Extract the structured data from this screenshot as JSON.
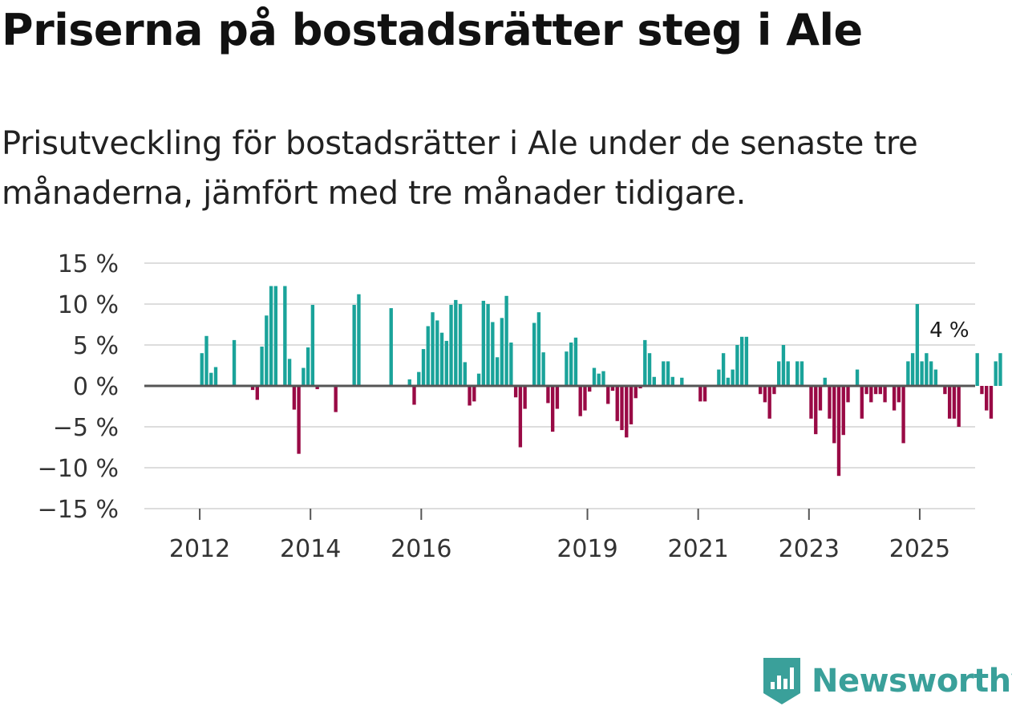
{
  "title": "Priserna på bostadsrätter steg i Ale",
  "subtitle": "Prisutveckling för bostadsrätter i Ale under de senaste tre månaderna, jämfört med tre månader tidigare.",
  "brand": {
    "name": "Newsworthy"
  },
  "colors": {
    "positive": "#1aa39a",
    "negative": "#990a45",
    "zero_line": "#555555",
    "grid": "#dddddd",
    "brand": "#3aa09a"
  },
  "chart_data": {
    "type": "bar",
    "ylim": [
      -15,
      15
    ],
    "yticks": [
      15,
      10,
      5,
      0,
      -5,
      -10,
      -15
    ],
    "ytick_labels": [
      "15 %",
      "10 %",
      "5 %",
      "0 %",
      "−5 %",
      "−10 %",
      "−15 %"
    ],
    "x_start": "2011-01",
    "x_end": "2025-12",
    "xticks": [
      {
        "label": "2012",
        "month": "2012-01"
      },
      {
        "label": "2014",
        "month": "2014-01"
      },
      {
        "label": "2016",
        "month": "2016-01"
      },
      {
        "label": "2019",
        "month": "2019-01"
      },
      {
        "label": "2021",
        "month": "2021-01"
      },
      {
        "label": "2023",
        "month": "2023-01"
      },
      {
        "label": "2025",
        "month": "2025-01"
      }
    ],
    "start_month": "2012-01",
    "values": [
      4,
      6.1,
      1.6,
      2.3,
      0,
      0,
      0,
      5.6,
      0,
      0,
      0,
      -0.5,
      -1.7,
      4.8,
      8.6,
      12.2,
      12.2,
      0,
      12.2,
      3.3,
      -2.9,
      -8.3,
      2.2,
      4.7,
      9.9,
      -0.4,
      0,
      0,
      0,
      -3.2,
      0,
      0,
      0,
      9.9,
      11.2,
      0,
      0,
      0,
      0,
      0,
      0,
      9.5,
      0,
      0,
      0,
      0.8,
      -2.3,
      1.7,
      4.5,
      7.3,
      9,
      8,
      6.5,
      5.5,
      9.9,
      10.5,
      10,
      2.9,
      -2.4,
      -1.9,
      1.5,
      10.4,
      10,
      7.8,
      3.5,
      8.3,
      11,
      5.3,
      -1.4,
      -7.5,
      -2.8,
      0,
      7.7,
      9,
      4.1,
      -2.1,
      -5.6,
      -2.8,
      0,
      4.2,
      5.3,
      5.9,
      -3.7,
      -3,
      -0.7,
      2.2,
      1.5,
      1.8,
      -2.2,
      -0.6,
      -4.3,
      -5.4,
      -6.3,
      -4.7,
      -1.5,
      -0.3,
      5.6,
      4,
      1.1,
      0,
      3,
      3,
      1.1,
      0,
      1,
      0,
      0,
      0,
      -1.9,
      -1.9,
      0,
      0,
      2,
      4,
      1,
      2,
      5,
      6,
      6,
      0,
      0,
      -1,
      -2,
      -4,
      -1,
      3,
      5,
      3,
      0,
      3,
      3,
      0,
      -4,
      -5.9,
      -3,
      1,
      -4,
      -7,
      -11,
      -6,
      -2,
      0,
      2,
      -4,
      -1,
      -2,
      -1,
      -1,
      -2,
      0,
      -3,
      -2,
      -7,
      3,
      4,
      10,
      3,
      4,
      3,
      2,
      0,
      -1,
      -4,
      -4,
      -5,
      0,
      0,
      0,
      4,
      -1,
      -3,
      -4,
      3,
      4
    ],
    "annotation": {
      "label": "4 %",
      "month": "2025-06",
      "value": 4
    }
  }
}
